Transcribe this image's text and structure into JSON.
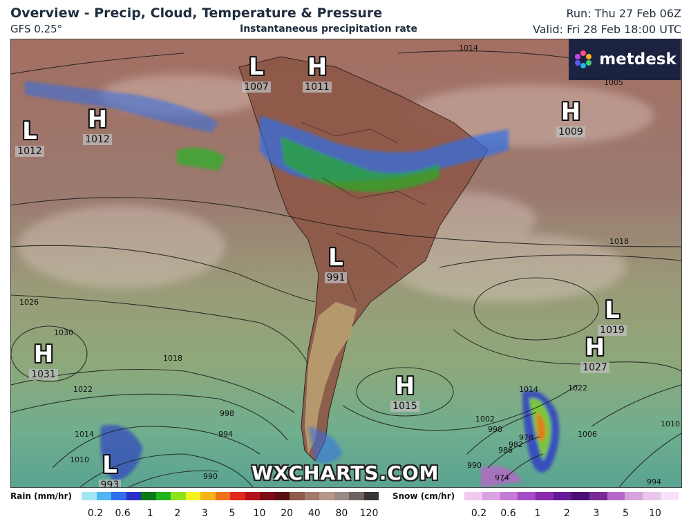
{
  "header": {
    "title": "Overview - Precip, Cloud, Temperature & Pressure",
    "model": "GFS 0.25°",
    "subtitle": "Instantaneous precipitation rate",
    "run": "Run: Thu 27 Feb 06Z",
    "valid": "Valid: Fri 28 Feb 18:00 UTC"
  },
  "logo": {
    "text": "metdesk",
    "icon": "metdesk-flower-icon"
  },
  "watermark": "WXCHARTS.COM",
  "pressure_systems": [
    {
      "type": "L",
      "value": "1007"
    },
    {
      "type": "H",
      "value": "1011"
    },
    {
      "type": "L",
      "value": "1012"
    },
    {
      "type": "H",
      "value": "1012"
    },
    {
      "type": "H",
      "value": "1009"
    },
    {
      "type": "L",
      "value": "991"
    },
    {
      "type": "L",
      "value": "1019"
    },
    {
      "type": "H",
      "value": "1027"
    },
    {
      "type": "H",
      "value": "1031"
    },
    {
      "type": "H",
      "value": "1015"
    },
    {
      "type": "L",
      "value": "993"
    }
  ],
  "isobar_labels": [
    "1014",
    "1005",
    "1018",
    "1026",
    "1030",
    "1018",
    "1022",
    "1014",
    "1010",
    "998",
    "994",
    "990",
    "1014",
    "1022",
    "1010",
    "1002",
    "998",
    "990",
    "986",
    "982",
    "978",
    "974",
    "1006",
    "994"
  ],
  "legend": {
    "rain": {
      "label": "Rain (mm/hr)",
      "ticks": [
        "0.2",
        "0.6",
        "1",
        "2",
        "3",
        "5",
        "10",
        "20",
        "40",
        "80",
        "120"
      ],
      "colors": [
        "#a4e6f4",
        "#4fb6f5",
        "#2f6ee8",
        "#2630c9",
        "#0c7a16",
        "#21b421",
        "#8ee21c",
        "#f2f21e",
        "#f5b419",
        "#f0711a",
        "#e22a1a",
        "#b4121a",
        "#7d0c16",
        "#5a1010",
        "#8e5a4a",
        "#a4786a",
        "#b8978a",
        "#9a8a86",
        "#6f6462",
        "#3a3434"
      ]
    },
    "snow": {
      "label": "Snow (cm/hr)",
      "ticks": [
        "0.2",
        "0.6",
        "1",
        "2",
        "3",
        "5",
        "10"
      ],
      "colors": [
        "#f0c8f0",
        "#dca0e6",
        "#c67ad8",
        "#a64cc6",
        "#8a2aae",
        "#661896",
        "#4a0e74",
        "#7a2a94",
        "#b666c6",
        "#d8a2dc",
        "#e9c6ec",
        "#f6e2f6"
      ]
    }
  }
}
